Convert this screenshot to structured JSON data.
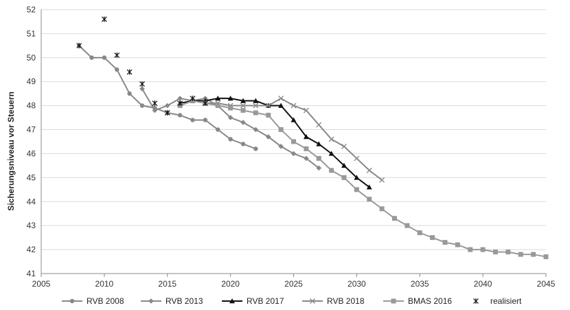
{
  "chart_data": {
    "type": "line",
    "title": "",
    "xlabel": "",
    "ylabel": "Sicherungsniveau vor Steuern",
    "xlim": [
      2005,
      2045
    ],
    "ylim": [
      41,
      52
    ],
    "xticks": [
      2005,
      2010,
      2015,
      2020,
      2025,
      2030,
      2035,
      2040,
      2045
    ],
    "yticks": [
      41,
      42,
      43,
      44,
      45,
      46,
      47,
      48,
      49,
      50,
      51,
      52
    ],
    "grid": "horizontal",
    "legend_position": "bottom",
    "series": [
      {
        "name": "RVB 2008",
        "color": "#888888",
        "marker": "circle",
        "x": [
          2008,
          2009,
          2010,
          2011,
          2012,
          2013,
          2014,
          2015,
          2016,
          2017,
          2018,
          2019,
          2020,
          2021,
          2022
        ],
        "y": [
          50.5,
          50.0,
          50.0,
          49.5,
          48.5,
          48.0,
          47.9,
          47.7,
          47.6,
          47.4,
          47.4,
          47.0,
          46.6,
          46.4,
          46.2
        ]
      },
      {
        "name": "RVB 2013",
        "color": "#888888",
        "marker": "diamond",
        "x": [
          2013,
          2014,
          2015,
          2016,
          2017,
          2018,
          2019,
          2020,
          2021,
          2022,
          2023,
          2024,
          2025,
          2026,
          2027
        ],
        "y": [
          48.7,
          47.8,
          48.0,
          48.3,
          48.2,
          48.3,
          48.0,
          47.5,
          47.3,
          47.0,
          46.7,
          46.3,
          46.0,
          45.8,
          45.4
        ]
      },
      {
        "name": "RVB 2017",
        "color": "#111111",
        "marker": "triangle",
        "x": [
          2016,
          2017,
          2018,
          2019,
          2020,
          2021,
          2022,
          2023,
          2024,
          2025,
          2026,
          2027,
          2028,
          2029,
          2030,
          2031
        ],
        "y": [
          48.1,
          48.2,
          48.2,
          48.3,
          48.3,
          48.2,
          48.2,
          48.0,
          48.0,
          47.4,
          46.7,
          46.4,
          46.0,
          45.5,
          45.0,
          44.6
        ]
      },
      {
        "name": "RVB 2018",
        "color": "#888888",
        "marker": "x",
        "x": [
          2018,
          2019,
          2020,
          2021,
          2022,
          2023,
          2024,
          2025,
          2026,
          2027,
          2028,
          2029,
          2030,
          2031,
          2032
        ],
        "y": [
          48.1,
          48.1,
          48.0,
          48.0,
          48.0,
          48.0,
          48.3,
          48.0,
          47.8,
          47.2,
          46.6,
          46.3,
          45.8,
          45.3,
          44.9
        ]
      },
      {
        "name": "BMAS 2016",
        "color": "#999999",
        "marker": "square",
        "x": [
          2016,
          2017,
          2018,
          2019,
          2020,
          2021,
          2022,
          2023,
          2024,
          2025,
          2026,
          2027,
          2028,
          2029,
          2030,
          2031,
          2032,
          2033,
          2034,
          2035,
          2036,
          2037,
          2038,
          2039,
          2040,
          2041,
          2042,
          2043,
          2044,
          2045
        ],
        "y": [
          48.0,
          48.2,
          48.1,
          48.0,
          47.9,
          47.8,
          47.7,
          47.6,
          47.0,
          46.5,
          46.2,
          45.8,
          45.3,
          45.0,
          44.5,
          44.1,
          43.7,
          43.3,
          43.0,
          42.7,
          42.5,
          42.3,
          42.2,
          42.0,
          42.0,
          41.9,
          41.9,
          41.8,
          41.8,
          41.7
        ]
      },
      {
        "name": "realisiert",
        "color": "#111111",
        "marker": "star",
        "line": false,
        "x": [
          2008,
          2010,
          2011,
          2012,
          2013,
          2014,
          2015,
          2016,
          2017,
          2018
        ],
        "y": [
          50.5,
          51.6,
          50.1,
          49.4,
          48.9,
          48.1,
          47.7,
          48.1,
          48.3,
          48.1
        ]
      }
    ]
  }
}
